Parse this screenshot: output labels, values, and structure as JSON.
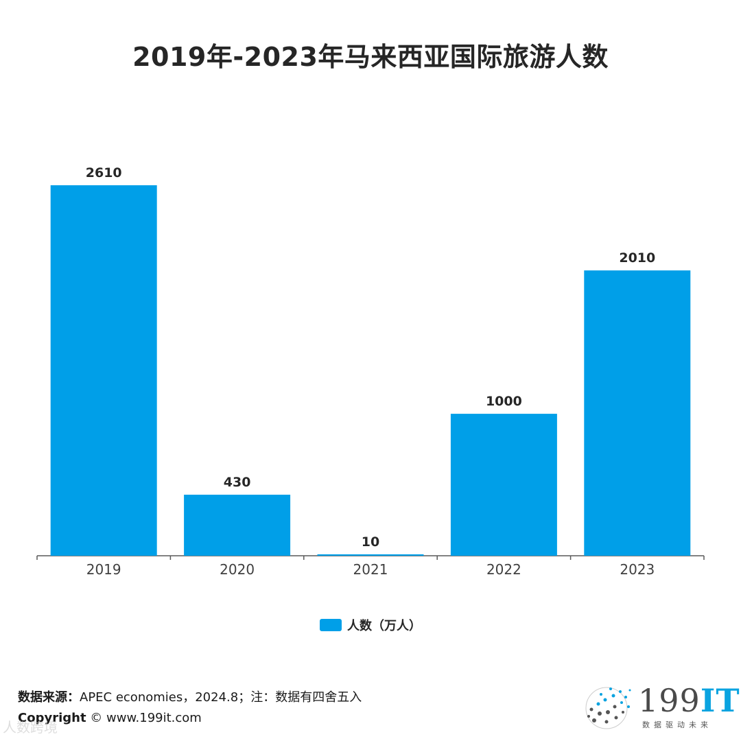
{
  "title": "2019年-2023年马来西亚国际旅游人数",
  "chart_data": {
    "type": "bar",
    "categories": [
      "2019",
      "2020",
      "2021",
      "2022",
      "2023"
    ],
    "series": [
      {
        "name": "人数（万人）",
        "values": [
          2610,
          430,
          10,
          1000,
          2010
        ]
      }
    ],
    "ylim": [
      0,
      2610
    ],
    "grid": false,
    "legend_position": "bottom",
    "colors": {
      "bar": "#009fe8",
      "axis": "#595959"
    }
  },
  "legend": {
    "label": "人数（万人）"
  },
  "footer": {
    "source_label": "数据来源：",
    "source_text": "APEC economies，2024.8；注：数据有四舍五入",
    "copyright_label": "Copyright",
    "copyright_text": "© www.199it.com"
  },
  "logo": {
    "numeral": "199",
    "suffix": "IT",
    "tagline": "数据驱动未来"
  },
  "watermark": "人数跨境"
}
